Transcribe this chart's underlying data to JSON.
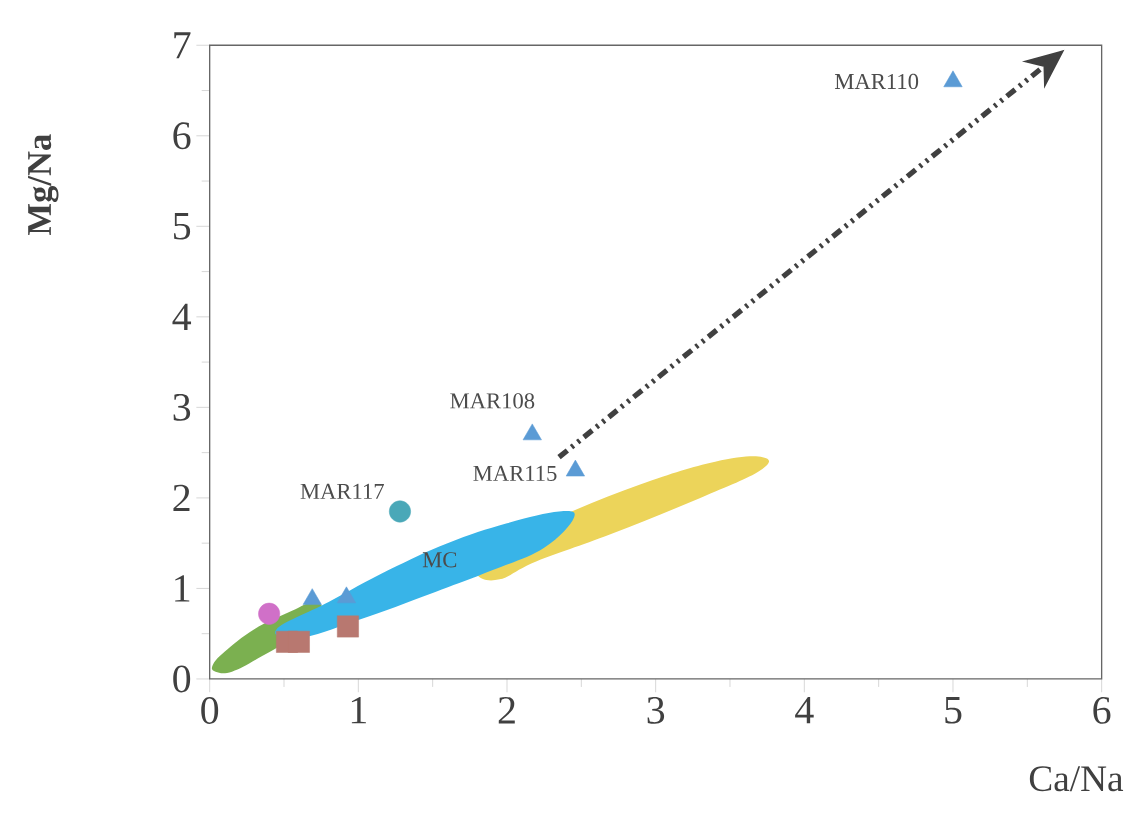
{
  "chart_data": {
    "type": "scatter",
    "xlabel": "Ca/Na",
    "ylabel": "Mg/Na",
    "xlim": [
      0,
      6
    ],
    "ylim": [
      0,
      7
    ],
    "xticks": [
      0,
      1,
      2,
      3,
      4,
      5,
      6
    ],
    "yticks": [
      0,
      1,
      2,
      3,
      4,
      5,
      6,
      7
    ],
    "series": [
      {
        "marker": "square",
        "color": "#b87870",
        "x": [
          0.52,
          0.6,
          0.93
        ],
        "values": [
          0.41,
          0.41,
          0.58
        ]
      },
      {
        "marker": "circle",
        "color": "#d070c8",
        "x": [
          0.4
        ],
        "values": [
          0.72
        ]
      },
      {
        "marker": "circle",
        "color": "#4aa8b8",
        "x": [
          1.28
        ],
        "values": [
          1.85
        ]
      },
      {
        "marker": "triangle",
        "color": "#5b9bd5",
        "x": [
          0.69,
          0.92,
          2.17,
          2.46,
          5.0
        ],
        "values": [
          0.88,
          0.9,
          2.7,
          2.3,
          6.6
        ]
      }
    ],
    "annotations": [
      {
        "text": "MAR110",
        "x": 5.0,
        "y": 6.6
      },
      {
        "text": "MAR108",
        "x": 2.17,
        "y": 2.7
      },
      {
        "text": "MAR115",
        "x": 2.46,
        "y": 2.3
      },
      {
        "text": "MAR117",
        "x": 1.28,
        "y": 1.85
      },
      "MC"
    ]
  }
}
